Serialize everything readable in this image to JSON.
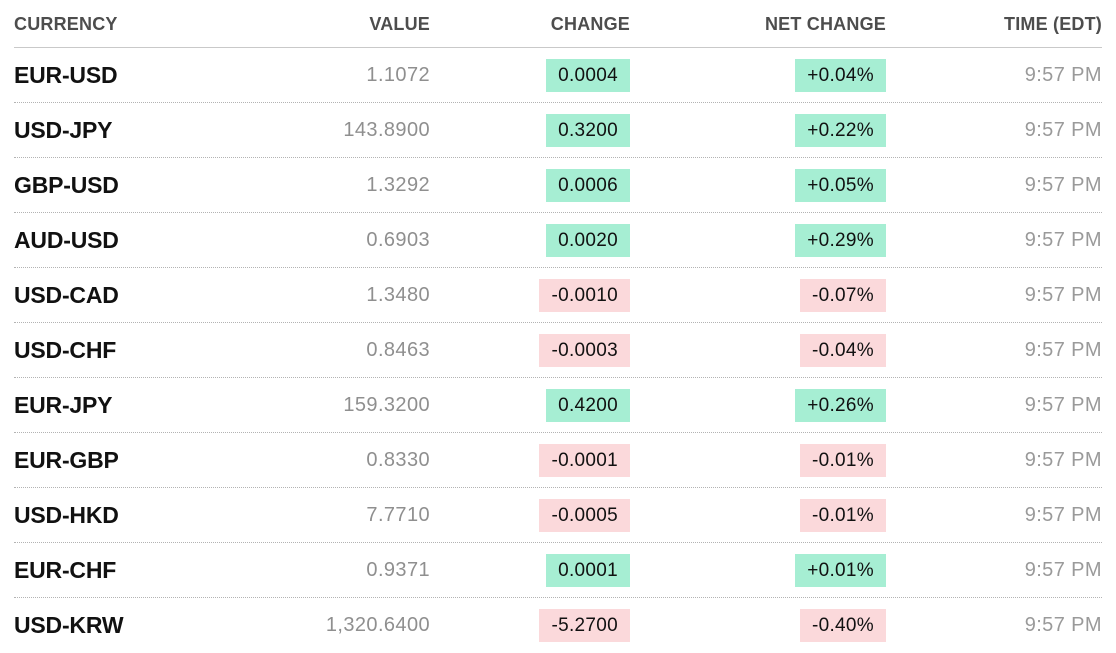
{
  "colors": {
    "positive-bg": "#a6eed3",
    "negative-bg": "#fbd9db",
    "badge-text": "#111111",
    "pair-text": "#111111",
    "header-text": "#4d4d4d",
    "value-text": "#8f8f8f",
    "time-text": "#9a9a9a",
    "rule-solid": "#c9c9c9",
    "rule-dotted": "#b3b3b3"
  },
  "table": {
    "columns": [
      {
        "label": "CURRENCY"
      },
      {
        "label": "VALUE"
      },
      {
        "label": "CHANGE"
      },
      {
        "label": "NET CHANGE"
      },
      {
        "label": "TIME (EDT)"
      }
    ],
    "rows": [
      {
        "currency": "EUR-USD",
        "value": "1.1072",
        "change": "0.0004",
        "net_change": "+0.04%",
        "time": "9:57 PM",
        "direction": "up"
      },
      {
        "currency": "USD-JPY",
        "value": "143.8900",
        "change": "0.3200",
        "net_change": "+0.22%",
        "time": "9:57 PM",
        "direction": "up"
      },
      {
        "currency": "GBP-USD",
        "value": "1.3292",
        "change": "0.0006",
        "net_change": "+0.05%",
        "time": "9:57 PM",
        "direction": "up"
      },
      {
        "currency": "AUD-USD",
        "value": "0.6903",
        "change": "0.0020",
        "net_change": "+0.29%",
        "time": "9:57 PM",
        "direction": "up"
      },
      {
        "currency": "USD-CAD",
        "value": "1.3480",
        "change": "-0.0010",
        "net_change": "-0.07%",
        "time": "9:57 PM",
        "direction": "down"
      },
      {
        "currency": "USD-CHF",
        "value": "0.8463",
        "change": "-0.0003",
        "net_change": "-0.04%",
        "time": "9:57 PM",
        "direction": "down"
      },
      {
        "currency": "EUR-JPY",
        "value": "159.3200",
        "change": "0.4200",
        "net_change": "+0.26%",
        "time": "9:57 PM",
        "direction": "up"
      },
      {
        "currency": "EUR-GBP",
        "value": "0.8330",
        "change": "-0.0001",
        "net_change": "-0.01%",
        "time": "9:57 PM",
        "direction": "down"
      },
      {
        "currency": "USD-HKD",
        "value": "7.7710",
        "change": "-0.0005",
        "net_change": "-0.01%",
        "time": "9:57 PM",
        "direction": "down"
      },
      {
        "currency": "EUR-CHF",
        "value": "0.9371",
        "change": "0.0001",
        "net_change": "+0.01%",
        "time": "9:57 PM",
        "direction": "up"
      },
      {
        "currency": "USD-KRW",
        "value": "1,320.6400",
        "change": "-5.2700",
        "net_change": "-0.40%",
        "time": "9:57 PM",
        "direction": "down"
      }
    ]
  }
}
